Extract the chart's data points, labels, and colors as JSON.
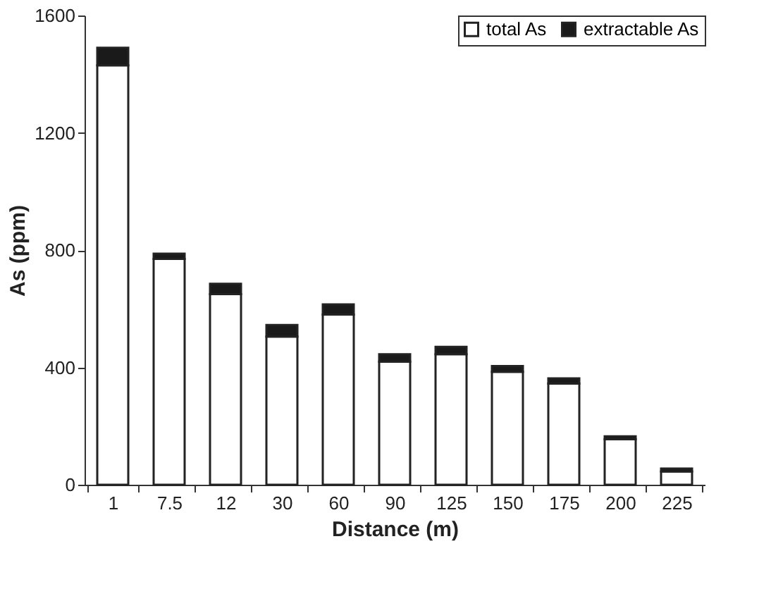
{
  "chart_data": {
    "type": "bar",
    "stacked": true,
    "xlabel": "Distance (m)",
    "ylabel": "As (ppm)",
    "categories": [
      "1",
      "7.5",
      "12",
      "30",
      "60",
      "90",
      "125",
      "150",
      "175",
      "200",
      "225"
    ],
    "series": [
      {
        "name": "total As",
        "color": "#ffffff",
        "values": [
          1430,
          770,
          650,
          505,
          580,
          420,
          445,
          385,
          345,
          155,
          45
        ]
      },
      {
        "name": "extractable As",
        "color": "#1a1a1a",
        "values": [
          60,
          18,
          35,
          40,
          35,
          25,
          25,
          20,
          18,
          10,
          10
        ]
      }
    ],
    "ylim": [
      0,
      1600
    ],
    "yticks": [
      0,
      400,
      800,
      1200,
      1600
    ],
    "grid": false,
    "legend": "top right"
  }
}
